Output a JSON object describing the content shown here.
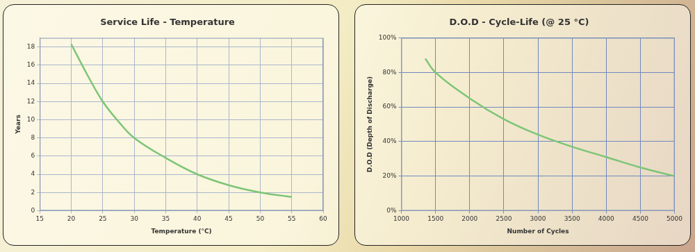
{
  "chart_data": [
    {
      "type": "line",
      "title": "Service Life - Temperature",
      "x_label": "Temperature (°C)",
      "y_label": "Years",
      "x": [
        20,
        22.5,
        25,
        27.5,
        30,
        35,
        40,
        45,
        50,
        55
      ],
      "values": [
        18.3,
        15,
        12,
        9.8,
        8,
        5.8,
        4,
        2.8,
        2,
        1.5
      ],
      "color": "#7cc576",
      "xlim": [
        15,
        60
      ],
      "xticks": [
        15,
        20,
        25,
        30,
        35,
        40,
        45,
        50,
        55,
        60
      ],
      "ylim": [
        0,
        19
      ],
      "yticks": [
        0,
        2,
        4,
        6,
        8,
        10,
        12,
        14,
        16,
        18
      ],
      "grid": true
    },
    {
      "type": "line",
      "title": "D.O.D - Cycle-Life (@ 25 °C)",
      "x_label": "Number of Cycles",
      "y_label": "D.O.D (Depth of Discharge)",
      "x": [
        1350,
        1500,
        2000,
        2500,
        3000,
        3500,
        4000,
        4500,
        5000
      ],
      "values": [
        88,
        80,
        65,
        53,
        44,
        37,
        31,
        25,
        20
      ],
      "color": "#7cc576",
      "xlim": [
        1000,
        5000
      ],
      "xticks": [
        1000,
        1500,
        2000,
        2500,
        3000,
        3500,
        4000,
        4500,
        5000
      ],
      "ylim": [
        0,
        100
      ],
      "yticks": [
        {
          "value": 0,
          "label": "0%"
        },
        {
          "value": 20,
          "label": "20%"
        },
        {
          "value": 40,
          "label": "40%"
        },
        {
          "value": 60,
          "label": "60%"
        },
        {
          "value": 80,
          "label": "80%"
        },
        {
          "value": 100,
          "label": "100%"
        }
      ],
      "grid": true
    }
  ]
}
